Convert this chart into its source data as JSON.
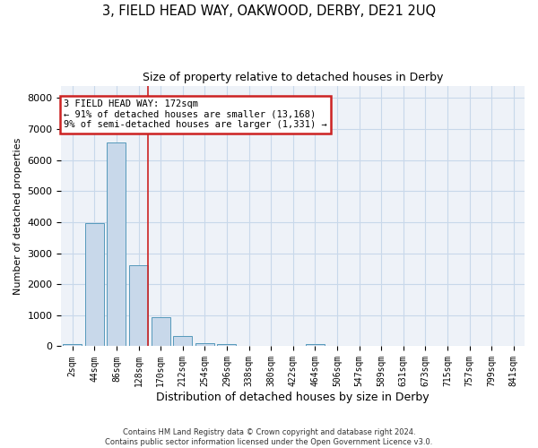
{
  "title": "3, FIELD HEAD WAY, OAKWOOD, DERBY, DE21 2UQ",
  "subtitle": "Size of property relative to detached houses in Derby",
  "xlabel": "Distribution of detached houses by size in Derby",
  "ylabel": "Number of detached properties",
  "footer_line1": "Contains HM Land Registry data © Crown copyright and database right 2024.",
  "footer_line2": "Contains public sector information licensed under the Open Government Licence v3.0.",
  "bar_labels": [
    "2sqm",
    "44sqm",
    "86sqm",
    "128sqm",
    "170sqm",
    "212sqm",
    "254sqm",
    "296sqm",
    "338sqm",
    "380sqm",
    "422sqm",
    "464sqm",
    "506sqm",
    "547sqm",
    "589sqm",
    "631sqm",
    "673sqm",
    "715sqm",
    "757sqm",
    "799sqm",
    "841sqm"
  ],
  "bar_values": [
    80,
    3980,
    6580,
    2600,
    950,
    330,
    110,
    60,
    0,
    0,
    0,
    60,
    0,
    0,
    0,
    0,
    0,
    0,
    0,
    0,
    0
  ],
  "bar_color": "#c8d8ea",
  "bar_edge_color": "#5599bb",
  "ylim_max": 8400,
  "yticks": [
    0,
    1000,
    2000,
    3000,
    4000,
    5000,
    6000,
    7000,
    8000
  ],
  "property_line_x": 3.42,
  "property_line_color": "#cc2222",
  "annotation_text": "3 FIELD HEAD WAY: 172sqm\n← 91% of detached houses are smaller (13,168)\n9% of semi-detached houses are larger (1,331) →",
  "annotation_box_edgecolor": "#cc2222",
  "grid_color": "#c8d8ea",
  "bg_color": "#eef2f8"
}
